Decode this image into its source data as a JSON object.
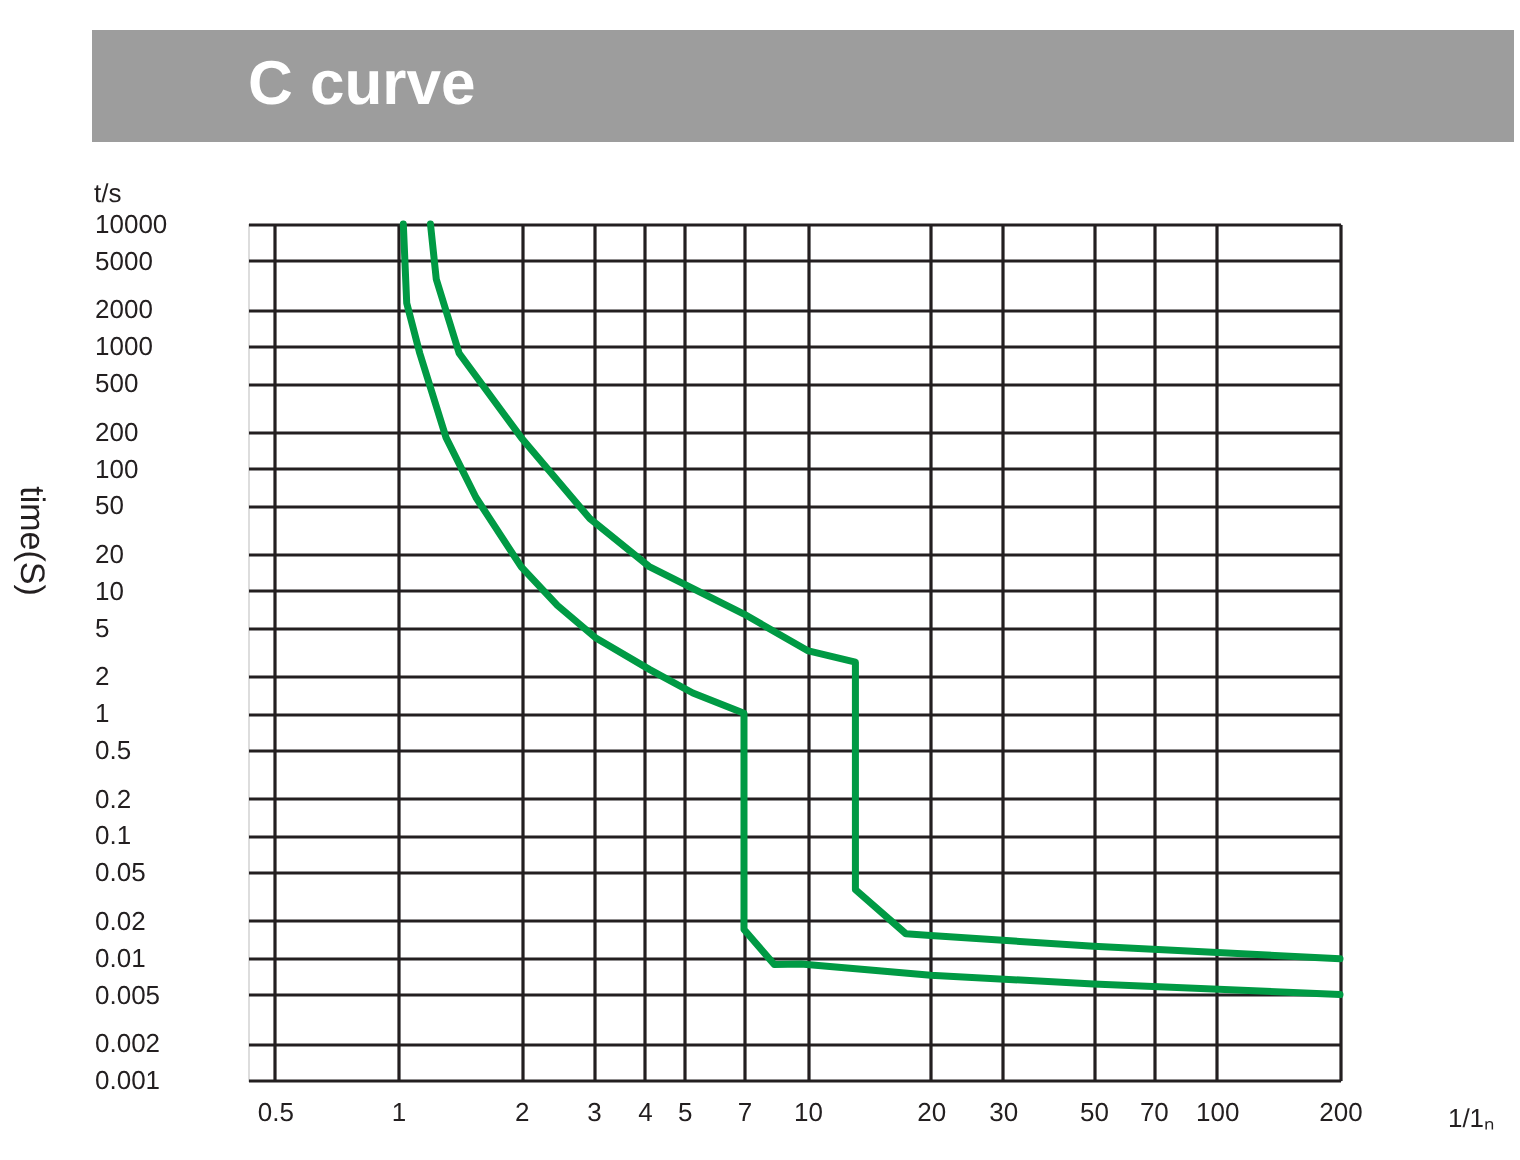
{
  "chart_data": {
    "type": "line",
    "title": "C curve",
    "xlabel": "1/1ₙ",
    "ylabel": "time(S)",
    "annotations": [
      "t/s"
    ],
    "log": "xy",
    "grid": true,
    "xlim": [
      0.43,
      200
    ],
    "xticks": [
      0.5,
      1,
      2,
      3,
      4,
      5,
      7,
      10,
      20,
      30,
      50,
      70,
      100,
      200
    ],
    "ylim": [
      0.001,
      10000
    ],
    "yticks": [
      10000,
      5000,
      2000,
      1000,
      500,
      200,
      100,
      50,
      20,
      10,
      5,
      2,
      1,
      0.5,
      0.2,
      0.1,
      0.05,
      0.02,
      0.01,
      0.005,
      0.002,
      0.001
    ],
    "series": [
      {
        "color": "#009a44",
        "x": [
          1.03,
          1.05,
          1.13,
          1.31,
          1.55,
          2,
          2.45,
          3.05,
          4.12,
          5.25,
          7,
          7,
          8.3,
          9.65,
          20,
          50,
          200
        ],
        "values": [
          10000,
          2250,
          877,
          179,
          58,
          15.7,
          7.6,
          4.09,
          2.27,
          1.46,
          1,
          0.017,
          0.0088,
          0.0089,
          0.0072,
          0.0061,
          0.005
        ]
      },
      {
        "color": "#009a44",
        "x": [
          1.2,
          1.24,
          1.41,
          2,
          2.94,
          4.12,
          7,
          10,
          13.1,
          13.1,
          17.4,
          20,
          50,
          200
        ],
        "values": [
          10000,
          3530,
          877,
          179,
          39,
          15.7,
          6.46,
          3.25,
          2.61,
          0.036,
          0.0157,
          0.0152,
          0.0124,
          0.0098
        ]
      }
    ]
  }
}
